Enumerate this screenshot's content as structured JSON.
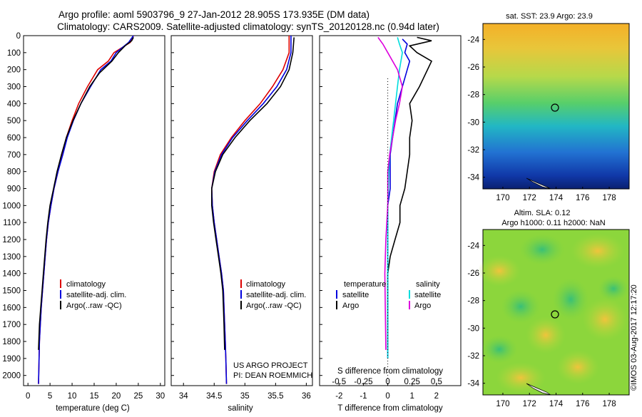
{
  "title": {
    "line1": "Argo profile: aoml 5903796_9 27-Jan-2012 28.905S 173.935E (DM data)",
    "line2": "Climatology: CARS2009. Satellite-adjusted climatology: synTS_20120128.nc (0.94d later)"
  },
  "depth_ticks": [
    "0",
    "100",
    "200",
    "300",
    "400",
    "500",
    "600",
    "700",
    "800",
    "900",
    "1000",
    "1100",
    "1200",
    "1300",
    "1400",
    "1500",
    "1600",
    "1700",
    "1800",
    "1900",
    "2000"
  ],
  "panels": {
    "temperature": {
      "xlabel": "temperature (deg C)",
      "ticks": [
        "0",
        "5",
        "10",
        "15",
        "20",
        "25",
        "30"
      ],
      "legend": [
        "climatology",
        "satellite-adj. clim.",
        "Argo(..raw -QC)"
      ]
    },
    "salinity": {
      "xlabel": "salinity",
      "ticks": [
        "34",
        "34.5",
        "35",
        "35.5",
        "36"
      ],
      "legend": [
        "climatology",
        "satellite-adj. clim.",
        "Argo(..raw -QC)"
      ],
      "credit1": "US ARGO PROJECT",
      "credit2": "PI: DEAN ROEMMICH"
    },
    "difference": {
      "xlabel": "T difference from climatology",
      "s_label": "S difference from climatology",
      "s_ticks": [
        "-0.5",
        "-0.25",
        "0",
        "0.25",
        "0.5"
      ],
      "t_ticks": [
        "-2",
        "-1",
        "0",
        "1",
        "2"
      ],
      "temp_legend_title": "temperature",
      "sal_legend_title": "salinity",
      "temp_items": [
        "satellite",
        "Argo"
      ],
      "sal_items": [
        "satellite",
        "Argo"
      ]
    }
  },
  "maps": {
    "sst_title": "sat. SST: 23.9  Argo: 23.9",
    "sla_title1": "Altim. SLA: 0.12",
    "sla_title2": "Argo h1000: 0.11  h2000: NaN",
    "lat_ticks": [
      "-24",
      "-26",
      "-28",
      "-30",
      "-32",
      "-34"
    ],
    "lon_ticks": [
      "170",
      "172",
      "174",
      "176",
      "178"
    ]
  },
  "timestamp": "©IMOS 03-Aug-2017 12:17:20",
  "colors": {
    "climatology": "#dd0000",
    "satellite": "#0000dd",
    "argo": "#000000",
    "sal_sat": "#00dddd",
    "sal_argo": "#dd00dd"
  },
  "chart_data": [
    {
      "type": "line",
      "xlabel": "temperature (deg C)",
      "ylabel": "",
      "xlim": [
        -1,
        31
      ],
      "ylim": [
        2060,
        0
      ],
      "series": [
        {
          "name": "climatology",
          "x": [
            23.9,
            23.2,
            19.5,
            18.2,
            15.8,
            13.5,
            11.5,
            10.0,
            8.7,
            7.8,
            6.8,
            5.9,
            5.2,
            4.6,
            4.2,
            3.9,
            3.6,
            3.3,
            3.0,
            2.8,
            2.6,
            2.4
          ],
          "y": [
            0,
            40,
            100,
            150,
            200,
            300,
            400,
            500,
            600,
            700,
            800,
            900,
            1000,
            1100,
            1200,
            1300,
            1400,
            1500,
            1600,
            1700,
            1800,
            2050
          ]
        },
        {
          "name": "satellite-adj. clim.",
          "x": [
            23.9,
            22.8,
            20.0,
            18.8,
            16.5,
            14.2,
            12.0,
            10.3,
            8.9,
            7.9,
            6.8,
            5.9,
            5.2,
            4.6,
            4.2,
            3.9,
            3.6,
            3.3,
            3.0,
            2.8,
            2.6,
            2.4
          ],
          "y": [
            0,
            40,
            100,
            150,
            200,
            300,
            400,
            500,
            600,
            700,
            800,
            900,
            1000,
            1100,
            1200,
            1300,
            1400,
            1500,
            1600,
            1700,
            1800,
            2050
          ]
        },
        {
          "name": "Argo(..raw -QC)",
          "x": [
            23.9,
            23.5,
            22.0,
            20.5,
            19.0,
            16.2,
            14.0,
            12.0,
            10.2,
            8.7,
            7.6,
            6.6,
            5.8,
            5.0,
            4.5,
            4.1,
            3.8,
            3.5,
            3.2,
            2.9,
            2.6,
            2.4
          ],
          "y": [
            10,
            30,
            60,
            100,
            150,
            220,
            300,
            400,
            500,
            600,
            700,
            800,
            900,
            1000,
            1100,
            1200,
            1300,
            1400,
            1500,
            1600,
            1700,
            1850
          ]
        }
      ]
    },
    {
      "type": "line",
      "xlabel": "salinity",
      "ylabel": "",
      "xlim": [
        33.8,
        36.1
      ],
      "ylim": [
        2060,
        0
      ],
      "series": [
        {
          "name": "climatology",
          "x": [
            35.72,
            35.72,
            35.62,
            35.45,
            35.25,
            35.0,
            34.78,
            34.6,
            34.5,
            34.46,
            34.47,
            34.5,
            34.54,
            34.58,
            34.62,
            34.65,
            34.66,
            34.67,
            34.68,
            34.69,
            34.7
          ],
          "y": [
            0,
            100,
            200,
            300,
            400,
            500,
            600,
            700,
            800,
            900,
            1000,
            1100,
            1200,
            1300,
            1400,
            1500,
            1600,
            1700,
            1800,
            1900,
            2050
          ]
        },
        {
          "name": "satellite-adj. clim.",
          "x": [
            35.75,
            35.75,
            35.68,
            35.52,
            35.3,
            35.04,
            34.8,
            34.62,
            34.51,
            34.46,
            34.47,
            34.5,
            34.54,
            34.58,
            34.62,
            34.65,
            34.66,
            34.67,
            34.68,
            34.69,
            34.7
          ],
          "y": [
            0,
            100,
            200,
            300,
            400,
            500,
            600,
            700,
            800,
            900,
            1000,
            1100,
            1200,
            1300,
            1400,
            1500,
            1600,
            1700,
            1800,
            1900,
            2050
          ]
        },
        {
          "name": "Argo(..raw -QC)",
          "x": [
            35.8,
            35.78,
            35.72,
            35.58,
            35.36,
            35.08,
            34.84,
            34.64,
            34.52,
            34.46,
            34.46,
            34.49,
            34.53,
            34.57,
            34.61,
            34.64,
            34.65,
            34.66,
            34.67
          ],
          "y": [
            10,
            100,
            200,
            300,
            400,
            500,
            600,
            700,
            800,
            900,
            1000,
            1100,
            1200,
            1300,
            1400,
            1500,
            1600,
            1700,
            1850
          ]
        }
      ]
    },
    {
      "type": "line",
      "xlabel": "T difference from climatology",
      "ylabel": "S difference from climatology",
      "xlim": [
        -2.8,
        3.0
      ],
      "ylim": [
        2060,
        0
      ],
      "series": [
        {
          "name": "temperature satellite",
          "x": [
            0.6,
            0.8,
            0.7,
            0.9,
            0.8,
            0.6,
            0.4,
            0.3,
            0.2,
            0.1,
            0.1,
            0.1,
            0.0,
            0.0,
            0.0,
            0.0,
            0.0,
            0.0
          ],
          "y": [
            20,
            50,
            100,
            150,
            200,
            300,
            400,
            500,
            600,
            700,
            800,
            900,
            1000,
            1100,
            1200,
            1300,
            1400,
            1900
          ]
        },
        {
          "name": "temperature Argo",
          "x": [
            1.2,
            1.8,
            0.9,
            1.2,
            1.8,
            1.3,
            0.9,
            1.0,
            0.9,
            0.9,
            0.8,
            0.7,
            0.5,
            0.5,
            0.3,
            0.1,
            0.0,
            0.0
          ],
          "y": [
            10,
            30,
            60,
            100,
            150,
            300,
            400,
            500,
            600,
            700,
            800,
            900,
            1000,
            1100,
            1200,
            1300,
            1400,
            1850
          ]
        },
        {
          "name": "salinity satellite",
          "x": [
            0.1,
            0.12,
            0.15,
            0.12,
            0.1,
            0.08,
            0.06,
            0.04,
            0.02,
            0.01,
            0.0,
            0.0,
            0.0,
            0.0
          ],
          "y": [
            10,
            50,
            100,
            200,
            300,
            400,
            500,
            600,
            700,
            800,
            1000,
            1200,
            1400,
            1900
          ]
        },
        {
          "name": "salinity Argo",
          "x": [
            -0.1,
            -0.05,
            0.0,
            0.1,
            0.15,
            0.12,
            0.08,
            0.05,
            0.02,
            0.0,
            0.0,
            -0.02,
            -0.03,
            -0.02
          ],
          "y": [
            10,
            50,
            100,
            200,
            300,
            400,
            500,
            600,
            700,
            800,
            1000,
            1200,
            1400,
            1850
          ]
        }
      ]
    }
  ]
}
